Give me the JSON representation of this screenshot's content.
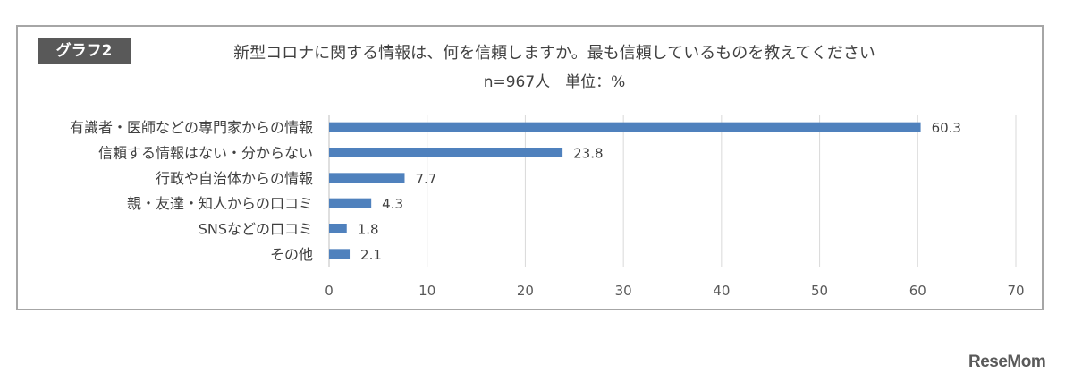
{
  "header": {
    "badge": "グラフ2",
    "title": "新型コロナに関する情報は、何を信頼しますか。最も信頼しているものを教えてください",
    "subtitle": "n=967人　単位：%"
  },
  "brand": {
    "logo_text": "ReseMom"
  },
  "colors": {
    "bar": "#4f81bd",
    "grid": "#d9d9d9",
    "axis": "#bfbfbf",
    "frame": "#a6a6a6"
  },
  "chart_data": {
    "type": "bar",
    "orientation": "horizontal",
    "categories": [
      "有識者・医師などの専門家からの情報",
      "信頼する情報はない・分からない",
      "行政や自治体からの情報",
      "親・友達・知人からの口コミ",
      "SNSなどの口コミ",
      "その他"
    ],
    "values": [
      60.3,
      23.8,
      7.7,
      4.3,
      1.8,
      2.1
    ],
    "xlim": [
      0,
      70
    ],
    "xticks": [
      0,
      10,
      20,
      30,
      40,
      50,
      60,
      70
    ],
    "grid": true
  }
}
